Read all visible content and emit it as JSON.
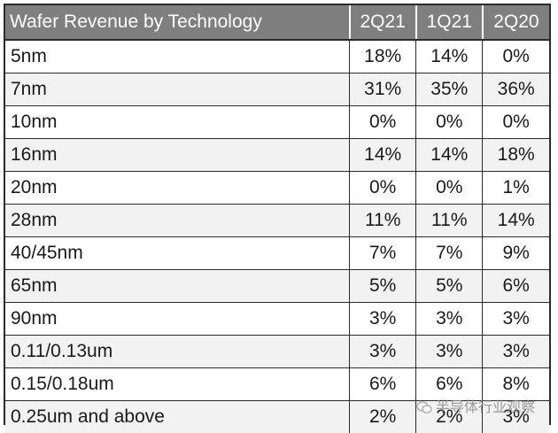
{
  "chart_data": {
    "type": "table",
    "title": "Wafer Revenue by Technology",
    "columns": [
      "2Q21",
      "1Q21",
      "2Q20"
    ],
    "rows": [
      {
        "label": "5nm",
        "values": [
          "18%",
          "14%",
          "0%"
        ]
      },
      {
        "label": "7nm",
        "values": [
          "31%",
          "35%",
          "36%"
        ]
      },
      {
        "label": "10nm",
        "values": [
          "0%",
          "0%",
          "0%"
        ]
      },
      {
        "label": "16nm",
        "values": [
          "14%",
          "14%",
          "18%"
        ]
      },
      {
        "label": "20nm",
        "values": [
          "0%",
          "0%",
          "1%"
        ]
      },
      {
        "label": "28nm",
        "values": [
          "11%",
          "11%",
          "14%"
        ]
      },
      {
        "label": "40/45nm",
        "values": [
          "7%",
          "7%",
          "9%"
        ]
      },
      {
        "label": "65nm",
        "values": [
          "5%",
          "5%",
          "6%"
        ]
      },
      {
        "label": "90nm",
        "values": [
          "3%",
          "3%",
          "3%"
        ]
      },
      {
        "label": "0.11/0.13um",
        "values": [
          "3%",
          "3%",
          "3%"
        ]
      },
      {
        "label": "0.15/0.18um",
        "values": [
          "6%",
          "6%",
          "8%"
        ]
      },
      {
        "label": "0.25um and above",
        "values": [
          "2%",
          "2%",
          "3%"
        ]
      }
    ]
  },
  "watermark": {
    "text": "半导体行业观察",
    "icon": "wechat-icon"
  },
  "colors": {
    "header_bg": "#7f7f7f",
    "header_text": "#ffffff",
    "border": "#2b2b2b",
    "row_alt": "#f2f2f2"
  }
}
